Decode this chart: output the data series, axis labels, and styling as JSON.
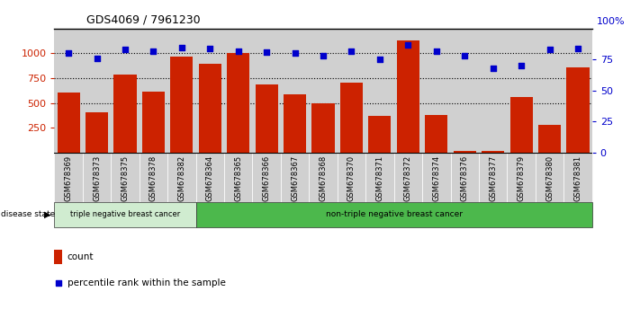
{
  "title": "GDS4069 / 7961230",
  "samples": [
    "GSM678369",
    "GSM678373",
    "GSM678375",
    "GSM678378",
    "GSM678382",
    "GSM678364",
    "GSM678365",
    "GSM678366",
    "GSM678367",
    "GSM678368",
    "GSM678370",
    "GSM678371",
    "GSM678372",
    "GSM678374",
    "GSM678376",
    "GSM678377",
    "GSM678379",
    "GSM678380",
    "GSM678381"
  ],
  "counts": [
    610,
    410,
    790,
    615,
    970,
    900,
    1000,
    690,
    590,
    500,
    710,
    370,
    1130,
    380,
    20,
    20,
    560,
    280,
    855
  ],
  "percentiles": [
    80,
    76,
    83,
    82,
    85,
    84,
    82,
    81,
    80,
    78,
    82,
    75,
    87,
    82,
    78,
    68,
    70,
    83,
    84
  ],
  "group1_label": "triple negative breast cancer",
  "group2_label": "non-triple negative breast cancer",
  "group1_count": 5,
  "bar_color": "#cc2200",
  "dot_color": "#0000cc",
  "legend_count_label": "count",
  "legend_pct_label": "percentile rank within the sample",
  "ylim_left": [
    0,
    1250
  ],
  "ylim_right": [
    0,
    100
  ],
  "yticks_left": [
    250,
    500,
    750,
    1000
  ],
  "yticks_right": [
    0,
    25,
    50,
    75
  ],
  "grid_values": [
    500,
    750,
    1000
  ],
  "disease_state_label": "disease state",
  "group1_color": "#d0ecd0",
  "group2_color": "#4cb84c",
  "col_bg_color": "#d0d0d0",
  "top_border_color": "#000000"
}
